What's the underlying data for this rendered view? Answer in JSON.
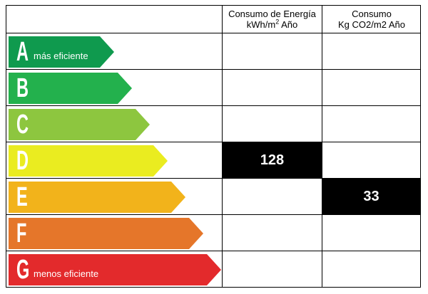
{
  "header": {
    "energy_line1": "Consumo de Energía",
    "energy_line2": "kWh/m",
    "energy_sup": "2",
    "energy_line2_tail": " Año",
    "co2_line1": "Consumo",
    "co2_line2": "Kg CO2/m2 Año"
  },
  "ratings": [
    {
      "letter": "A",
      "desc": "más eficiente",
      "color": "#0f9a4e"
    },
    {
      "letter": "B",
      "desc": "",
      "color": "#23b14d"
    },
    {
      "letter": "C",
      "desc": "",
      "color": "#8dc63f"
    },
    {
      "letter": "D",
      "desc": "",
      "color": "#eaec20"
    },
    {
      "letter": "E",
      "desc": "",
      "color": "#f2b31b"
    },
    {
      "letter": "F",
      "desc": "",
      "color": "#e5762a"
    },
    {
      "letter": "G",
      "desc": "menos eficiente",
      "color": "#e32a2c"
    }
  ],
  "values": {
    "energy": {
      "value": "128",
      "rating": "D"
    },
    "co2": {
      "value": "33",
      "rating": "E"
    }
  }
}
